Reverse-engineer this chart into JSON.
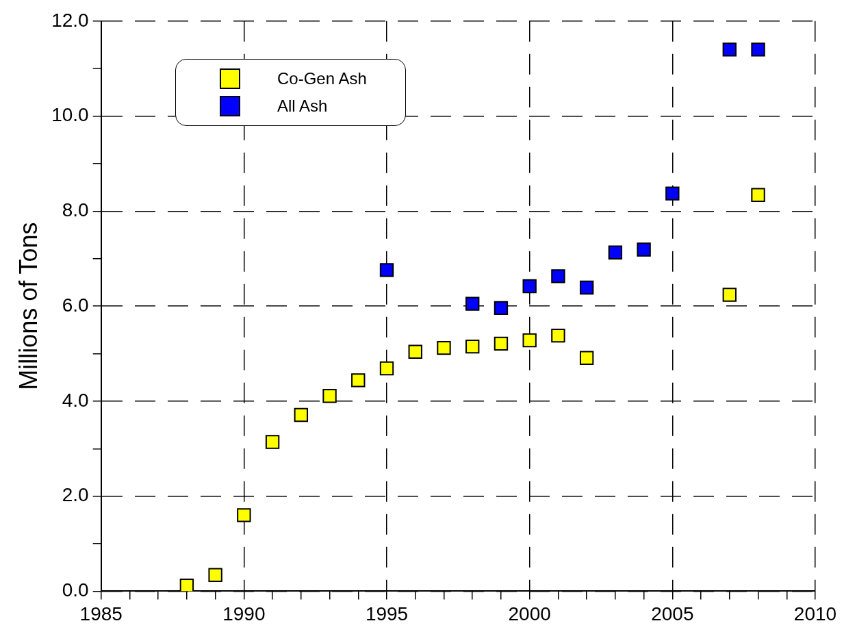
{
  "chart_data": {
    "type": "scatter",
    "ylabel": "Millions of Tons",
    "xlim": [
      1985,
      2010
    ],
    "xticks": [
      1985,
      {
        "value": 1986,
        "label": null
      },
      {
        "value": 1987,
        "label": null
      },
      {
        "value": 1988,
        "label": null
      },
      {
        "value": 1989,
        "label": null
      },
      1990,
      {
        "value": 1991,
        "label": null
      },
      {
        "value": 1992,
        "label": null
      },
      {
        "value": 1993,
        "label": null
      },
      {
        "value": 1994,
        "label": null
      },
      1995,
      {
        "value": 1996,
        "label": null
      },
      {
        "value": 1997,
        "label": null
      },
      {
        "value": 1998,
        "label": null
      },
      {
        "value": 1999,
        "label": null
      },
      2000,
      {
        "value": 2001,
        "label": null
      },
      {
        "value": 2002,
        "label": null
      },
      {
        "value": 2003,
        "label": null
      },
      {
        "value": 2004,
        "label": null
      },
      2005,
      {
        "value": 2006,
        "label": null
      },
      {
        "value": 2007,
        "label": null
      },
      {
        "value": 2008,
        "label": null
      },
      {
        "value": 2009,
        "label": null
      },
      2010
    ],
    "ylim": [
      0,
      12
    ],
    "yticks": [
      {
        "value": 0,
        "label": "0.0"
      },
      {
        "value": 1,
        "label": null
      },
      {
        "value": 2,
        "label": "2.0"
      },
      {
        "value": 3,
        "label": null
      },
      {
        "value": 4,
        "label": "4.0"
      },
      {
        "value": 5,
        "label": null
      },
      {
        "value": 6,
        "label": "6.0"
      },
      {
        "value": 7,
        "label": null
      },
      {
        "value": 8,
        "label": "8.0"
      },
      {
        "value": 9,
        "label": null
      },
      {
        "value": 10,
        "label": "10.0"
      },
      {
        "value": 11,
        "label": null
      },
      {
        "value": 12,
        "label": "12.0"
      }
    ],
    "grid": true,
    "legend": "top left",
    "marker": "square",
    "series": [
      {
        "name": "Co-Gen Ash",
        "color": "#ffff00",
        "x": [
          1988,
          1989,
          1990,
          1991,
          1992,
          1993,
          1994,
          1995,
          1996,
          1997,
          1998,
          1999,
          2000,
          2001,
          2002,
          2007,
          2008
        ],
        "values": [
          0.12,
          0.34,
          1.6,
          3.14,
          3.71,
          4.11,
          4.44,
          4.69,
          5.04,
          5.12,
          5.15,
          5.21,
          5.28,
          5.38,
          4.91,
          6.24,
          8.34
        ]
      },
      {
        "name": "All Ash",
        "color": "#0000ff",
        "x": [
          1995,
          1998,
          1999,
          2000,
          2001,
          2002,
          2003,
          2004,
          2005,
          2007,
          2008
        ],
        "values": [
          6.76,
          6.05,
          5.96,
          6.42,
          6.63,
          6.39,
          7.13,
          7.19,
          8.37,
          11.4,
          11.4
        ]
      }
    ]
  }
}
